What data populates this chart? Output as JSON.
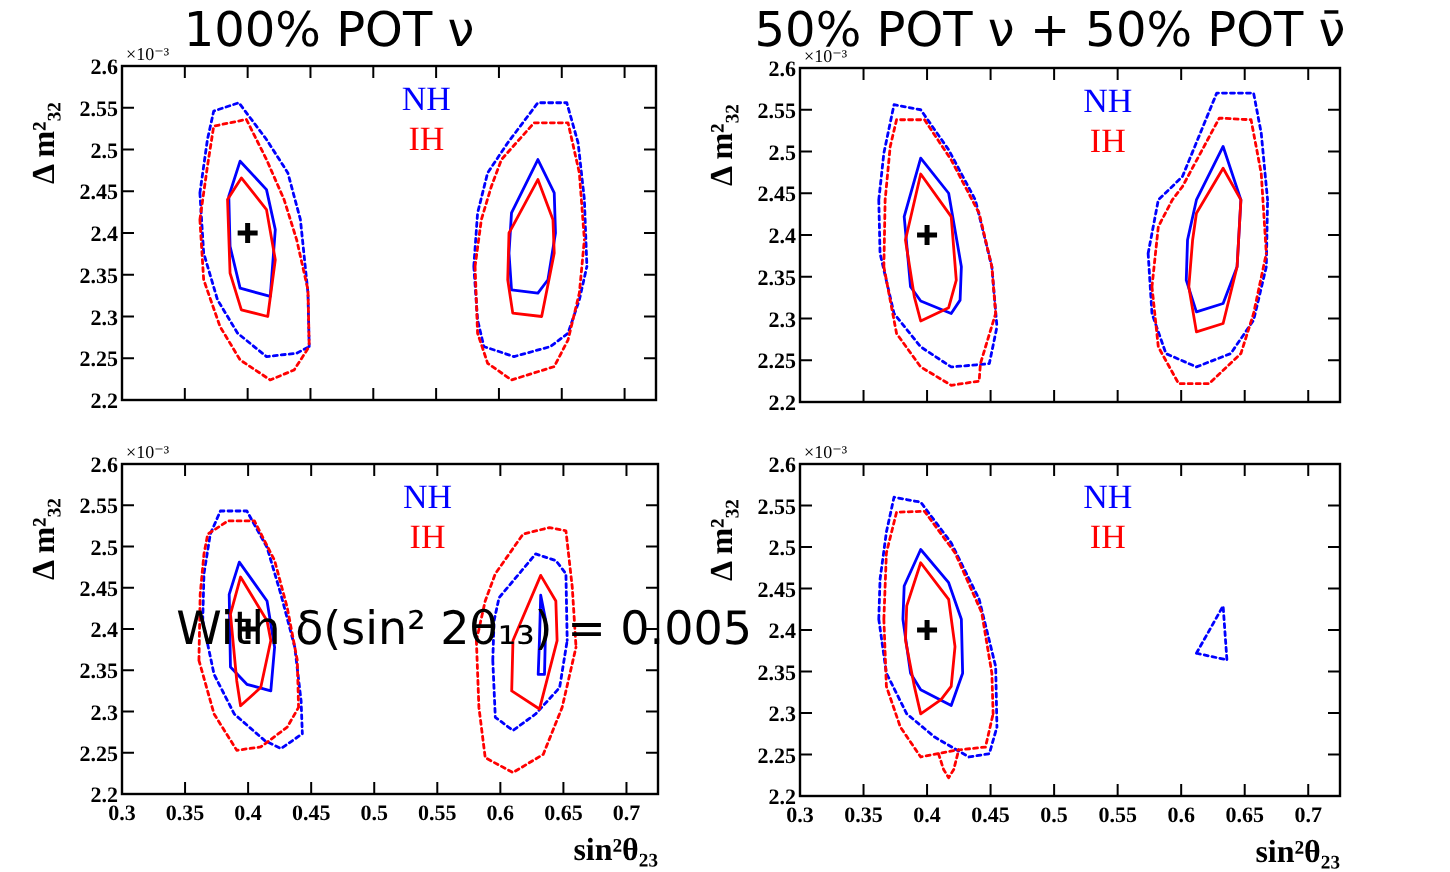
{
  "chart_data": [
    {
      "type": "line",
      "title": "100% POT ν",
      "ylabel": "Δ m²₃₂",
      "annotations": [
        "×10⁻³"
      ],
      "xlim": [
        0.3,
        0.725
      ],
      "ylim": [
        2.2,
        2.6
      ],
      "xticks": [
        0.3,
        0.35,
        0.4,
        0.45,
        0.5,
        0.55,
        0.6,
        0.65,
        0.7
      ],
      "yticks": [
        2.2,
        2.25,
        2.3,
        2.35,
        2.4,
        2.45,
        2.5,
        2.55,
        2.6
      ],
      "tick_labels": "y",
      "legend": "top",
      "series": [
        {
          "color": "#0000ff",
          "line_style": "dotted",
          "x": [
            0.362,
            0.368,
            0.373,
            0.393,
            0.415,
            0.432,
            0.442,
            0.448,
            0.449,
            null,
            0.362,
            0.365,
            0.376,
            0.392,
            0.415,
            0.439,
            0.449,
            null,
            0.58,
            0.583,
            0.591,
            0.607,
            0.631,
            0.654,
            0.663,
            0.668,
            0.67,
            null,
            0.58,
            0.583,
            0.588,
            0.612,
            0.641,
            0.655,
            0.664,
            0.67
          ],
          "values": [
            2.448,
            2.512,
            2.546,
            2.556,
            2.512,
            2.472,
            2.416,
            2.328,
            2.264,
            null,
            2.448,
            2.376,
            2.32,
            2.28,
            2.252,
            2.256,
            2.264,
            null,
            2.36,
            2.424,
            2.472,
            2.508,
            2.556,
            2.556,
            2.508,
            2.44,
            2.36,
            null,
            2.36,
            2.296,
            2.264,
            2.252,
            2.264,
            2.28,
            2.32,
            2.36
          ]
        },
        {
          "color": "#ff0000",
          "line_style": "dotted",
          "x": [
            0.362,
            0.368,
            0.373,
            0.399,
            0.415,
            0.429,
            0.439,
            0.448,
            0.449,
            null,
            0.362,
            0.365,
            0.378,
            0.394,
            0.418,
            0.437,
            0.449,
            null,
            0.581,
            0.586,
            0.594,
            0.602,
            0.628,
            0.655,
            0.664,
            0.668,
            null,
            0.581,
            0.583,
            0.591,
            0.61,
            0.644,
            0.655,
            0.664,
            0.668
          ],
          "values": [
            2.416,
            2.48,
            2.528,
            2.536,
            2.488,
            2.44,
            2.392,
            2.332,
            2.264,
            null,
            2.416,
            2.344,
            2.288,
            2.248,
            2.224,
            2.236,
            2.264,
            null,
            2.36,
            2.416,
            2.456,
            2.488,
            2.532,
            2.532,
            2.472,
            2.392,
            null,
            2.36,
            2.28,
            2.244,
            2.224,
            2.24,
            2.272,
            2.328,
            2.392
          ]
        },
        {
          "name": "NH",
          "color": "#0000ff",
          "line_style": "solid",
          "x": [
            0.385,
            0.394,
            0.415,
            0.422,
            null,
            0.385,
            0.386,
            0.394,
            0.418,
            0.422,
            null,
            0.608,
            0.61,
            0.631,
            0.644,
            0.645,
            null,
            0.608,
            0.61,
            0.631,
            0.639,
            0.645
          ],
          "values": [
            2.444,
            2.486,
            2.452,
            2.404,
            null,
            2.444,
            2.384,
            2.334,
            2.324,
            2.404,
            null,
            2.376,
            2.424,
            2.488,
            2.448,
            2.4,
            null,
            2.376,
            2.332,
            2.328,
            2.344,
            2.4
          ]
        },
        {
          "name": "IH",
          "color": "#ff0000",
          "line_style": "solid",
          "x": [
            0.384,
            0.395,
            0.415,
            0.422,
            null,
            0.384,
            0.386,
            0.395,
            0.416,
            0.422,
            null,
            0.607,
            0.608,
            0.631,
            0.643,
            0.644,
            null,
            0.607,
            0.611,
            0.634,
            0.644
          ],
          "values": [
            2.44,
            2.466,
            2.428,
            2.368,
            null,
            2.44,
            2.352,
            2.308,
            2.3,
            2.368,
            null,
            2.344,
            2.4,
            2.464,
            2.416,
            2.376,
            null,
            2.344,
            2.304,
            2.3,
            2.376
          ]
        },
        {
          "type": "scatter",
          "color": "#000000",
          "marker": "cross",
          "x": [
            0.4
          ],
          "values": [
            2.4
          ]
        }
      ]
    },
    {
      "type": "line",
      "title": "50% POT ν + 50% POT ν̄",
      "ylabel": "Δ m²₃₂",
      "annotations": [
        "×10⁻³"
      ],
      "xlim": [
        0.3,
        0.725
      ],
      "ylim": [
        2.2,
        2.6
      ],
      "xticks": [
        0.3,
        0.35,
        0.4,
        0.45,
        0.5,
        0.55,
        0.6,
        0.65,
        0.7
      ],
      "yticks": [
        2.2,
        2.25,
        2.3,
        2.35,
        2.4,
        2.45,
        2.5,
        2.55,
        2.6
      ],
      "tick_labels": "y",
      "legend": "top",
      "series": [
        {
          "color": "#0000ff",
          "line_style": "dotted",
          "x": [
            0.362,
            0.366,
            0.374,
            0.395,
            0.417,
            0.438,
            0.451,
            0.455,
            null,
            0.362,
            0.363,
            0.374,
            0.395,
            0.419,
            0.435,
            0.449,
            0.455,
            null,
            0.574,
            0.582,
            0.601,
            0.628,
            0.657,
            0.663,
            0.668,
            null,
            0.574,
            0.577,
            0.588,
            0.612,
            0.639,
            0.657,
            0.667,
            0.668
          ],
          "values": [
            2.442,
            2.498,
            2.556,
            2.55,
            2.502,
            2.442,
            2.362,
            2.29,
            null,
            2.442,
            2.378,
            2.306,
            2.266,
            2.242,
            2.244,
            2.246,
            2.29,
            null,
            2.378,
            2.442,
            2.47,
            2.57,
            2.57,
            2.522,
            2.442,
            null,
            2.378,
            2.306,
            2.258,
            2.242,
            2.258,
            2.298,
            2.362,
            2.442
          ]
        },
        {
          "color": "#ff0000",
          "line_style": "dotted",
          "x": [
            0.366,
            0.367,
            0.371,
            0.376,
            0.398,
            0.419,
            0.441,
            0.451,
            0.454,
            null,
            0.366,
            0.376,
            0.395,
            0.419,
            0.441,
            0.442,
            0.454,
            null,
            0.577,
            0.582,
            0.593,
            0.601,
            0.63,
            0.655,
            0.663,
            0.667,
            null,
            0.577,
            0.582,
            0.598,
            0.622,
            0.647,
            0.657,
            0.667
          ],
          "values": [
            2.362,
            2.442,
            2.506,
            2.538,
            2.538,
            2.49,
            2.426,
            2.362,
            2.306,
            null,
            2.362,
            2.282,
            2.242,
            2.22,
            2.225,
            2.246,
            2.306,
            null,
            2.338,
            2.41,
            2.442,
            2.458,
            2.54,
            2.538,
            2.474,
            2.378,
            null,
            2.338,
            2.266,
            2.222,
            2.222,
            2.258,
            2.306,
            2.378
          ]
        },
        {
          "name": "NH",
          "color": "#0000ff",
          "line_style": "solid",
          "x": [
            0.382,
            0.395,
            0.417,
            0.427,
            null,
            0.382,
            0.387,
            0.395,
            0.419,
            0.426,
            0.427,
            null,
            0.604,
            0.605,
            0.612,
            0.633,
            0.647,
            null,
            0.604,
            0.612,
            0.633,
            0.644,
            0.647
          ],
          "values": [
            2.422,
            2.492,
            2.45,
            2.362,
            null,
            2.422,
            2.338,
            2.321,
            2.306,
            2.322,
            2.362,
            null,
            2.346,
            2.394,
            2.442,
            2.506,
            2.442,
            null,
            2.346,
            2.308,
            2.318,
            2.362,
            2.442
          ]
        },
        {
          "name": "IH",
          "color": "#ff0000",
          "line_style": "solid",
          "x": [
            0.383,
            0.395,
            0.419,
            0.423,
            null,
            0.383,
            0.39,
            0.395,
            0.417,
            0.423,
            null,
            0.606,
            0.609,
            0.612,
            0.633,
            0.647,
            null,
            0.606,
            0.612,
            0.633,
            0.644,
            0.647
          ],
          "values": [
            2.394,
            2.473,
            2.422,
            2.346,
            null,
            2.394,
            2.326,
            2.297,
            2.313,
            2.346,
            null,
            2.338,
            2.394,
            2.426,
            2.48,
            2.442,
            null,
            2.338,
            2.284,
            2.294,
            2.362,
            2.442
          ]
        },
        {
          "type": "scatter",
          "color": "#000000",
          "marker": "cross",
          "x": [
            0.4
          ],
          "values": [
            2.4
          ]
        }
      ]
    },
    {
      "type": "line",
      "xlabel": "sin²θ₂₃",
      "ylabel": "Δ m²₃₂",
      "annotations": [
        "×10⁻³",
        "With δ(sin² 2θ₁₃) = 0.005"
      ],
      "xlim": [
        0.3,
        0.725
      ],
      "ylim": [
        2.2,
        2.6
      ],
      "xticks": [
        0.3,
        0.35,
        0.4,
        0.45,
        0.5,
        0.55,
        0.6,
        0.65,
        0.7
      ],
      "yticks": [
        2.2,
        2.25,
        2.3,
        2.35,
        2.4,
        2.45,
        2.5,
        2.55,
        2.6
      ],
      "legend": "top",
      "series": [
        {
          "color": "#0000ff",
          "line_style": "dotted",
          "x": [
            0.364,
            0.365,
            0.37,
            0.378,
            0.399,
            0.415,
            0.426,
            0.437,
            0.442,
            0.443,
            null,
            0.364,
            0.373,
            0.389,
            0.413,
            0.426,
            0.443,
            null,
            0.594,
            0.595,
            0.599,
            0.628,
            0.644,
            0.652,
            0.653,
            null,
            0.594,
            0.596,
            0.61,
            0.628,
            0.647,
            0.653
          ],
          "values": [
            2.41,
            2.467,
            2.515,
            2.543,
            2.543,
            2.499,
            2.442,
            2.378,
            2.313,
            2.273,
            null,
            2.41,
            2.345,
            2.297,
            2.265,
            2.255,
            2.273,
            null,
            2.362,
            2.41,
            2.438,
            2.491,
            2.483,
            2.467,
            2.386,
            null,
            2.362,
            2.293,
            2.277,
            2.297,
            2.329,
            2.386
          ]
        },
        {
          "color": "#ff0000",
          "line_style": "dotted",
          "x": [
            0.361,
            0.362,
            0.365,
            0.368,
            0.384,
            0.405,
            0.421,
            0.431,
            0.439,
            0.44,
            null,
            0.361,
            0.373,
            0.391,
            0.41,
            0.431,
            0.44,
            null,
            0.581,
            0.588,
            0.596,
            0.618,
            0.639,
            0.652,
            0.657,
            0.66,
            null,
            0.581,
            0.583,
            0.588,
            0.61,
            0.634,
            0.649,
            0.66
          ],
          "values": [
            2.362,
            2.442,
            2.491,
            2.515,
            2.531,
            2.531,
            2.483,
            2.426,
            2.362,
            2.305,
            null,
            2.362,
            2.297,
            2.253,
            2.257,
            2.281,
            2.305,
            null,
            2.386,
            2.434,
            2.467,
            2.515,
            2.523,
            2.519,
            2.451,
            2.378,
            null,
            2.386,
            2.305,
            2.244,
            2.226,
            2.248,
            2.305,
            2.378
          ]
        },
        {
          "name": "NH",
          "color": "#0000ff",
          "line_style": "solid",
          "x": [
            0.385,
            0.393,
            0.415,
            0.421,
            null,
            0.385,
            0.386,
            0.399,
            0.418,
            0.421,
            null,
            0.63,
            0.631,
            0.632,
            0.636,
            null,
            0.63,
            0.635,
            0.636
          ],
          "values": [
            2.442,
            2.481,
            2.434,
            2.378,
            null,
            2.442,
            2.354,
            2.333,
            2.325,
            2.378,
            null,
            2.345,
            2.386,
            2.441,
            2.41,
            null,
            2.345,
            2.345,
            2.41
          ]
        },
        {
          "name": "IH",
          "color": "#ff0000",
          "line_style": "solid",
          "x": [
            0.386,
            0.394,
            0.415,
            0.418,
            null,
            0.386,
            0.391,
            0.394,
            0.41,
            0.418,
            null,
            0.609,
            0.61,
            0.632,
            0.644,
            0.645,
            null,
            0.609,
            0.631,
            0.645
          ],
          "values": [
            2.418,
            2.463,
            2.41,
            2.386,
            null,
            2.418,
            2.337,
            2.307,
            2.329,
            2.386,
            null,
            2.325,
            2.386,
            2.465,
            2.434,
            2.386,
            null,
            2.325,
            2.303,
            2.386
          ]
        },
        {
          "type": "scatter",
          "color": "#000000",
          "marker": "cross",
          "x": [
            0.4
          ],
          "values": [
            2.4
          ]
        }
      ]
    },
    {
      "type": "line",
      "xlabel": "sin²θ₂₃",
      "ylabel": "Δ m²₃₂",
      "annotations": [
        "×10⁻³"
      ],
      "xlim": [
        0.3,
        0.725
      ],
      "ylim": [
        2.2,
        2.6
      ],
      "xticks": [
        0.3,
        0.35,
        0.4,
        0.45,
        0.5,
        0.55,
        0.6,
        0.65,
        0.7
      ],
      "yticks": [
        2.2,
        2.25,
        2.3,
        2.35,
        2.4,
        2.45,
        2.5,
        2.55,
        2.6
      ],
      "legend": "top",
      "series": [
        {
          "color": "#0000ff",
          "line_style": "dotted",
          "x": [
            0.362,
            0.363,
            0.368,
            0.374,
            0.395,
            0.419,
            0.441,
            0.454,
            0.455,
            null,
            0.362,
            0.368,
            0.384,
            0.406,
            0.433,
            0.449,
            0.455,
            null,
            0.612,
            0.633,
            0.636,
            null,
            0.612,
            0.636
          ],
          "values": [
            2.413,
            2.461,
            2.518,
            2.56,
            2.554,
            2.505,
            2.437,
            2.356,
            2.283,
            null,
            2.413,
            2.348,
            2.299,
            2.271,
            2.247,
            2.251,
            2.283,
            null,
            2.372,
            2.429,
            2.364,
            null,
            2.372,
            2.364
          ]
        },
        {
          "color": "#ff0000",
          "line_style": "dotted",
          "x": [
            0.366,
            0.368,
            0.376,
            0.398,
            0.422,
            0.443,
            0.451,
            0.452,
            null,
            0.366,
            0.368,
            0.379,
            0.395,
            0.422,
            0.446,
            0.452,
            null,
            0.409,
            0.413,
            0.417,
            0.421,
            0.425
          ],
          "values": [
            2.413,
            2.493,
            2.542,
            2.543,
            2.493,
            2.421,
            2.348,
            2.299,
            null,
            2.413,
            2.332,
            2.283,
            2.247,
            2.255,
            2.259,
            2.299,
            null,
            2.251,
            2.232,
            2.222,
            2.232,
            2.256
          ]
        },
        {
          "name": "NH",
          "color": "#0000ff",
          "line_style": "solid",
          "x": [
            0.381,
            0.382,
            0.395,
            0.417,
            0.427,
            0.428,
            null,
            0.381,
            0.387,
            0.395,
            0.419,
            0.428
          ],
          "values": [
            2.413,
            2.453,
            2.497,
            2.457,
            2.413,
            2.348,
            null,
            2.413,
            2.348,
            2.328,
            2.309,
            2.348
          ]
        },
        {
          "name": "IH",
          "color": "#ff0000",
          "line_style": "solid",
          "x": [
            0.383,
            0.384,
            0.395,
            0.417,
            0.422,
            null,
            0.383,
            0.39,
            0.395,
            0.411,
            0.419,
            0.422
          ],
          "values": [
            2.388,
            2.429,
            2.481,
            2.437,
            2.38,
            null,
            2.388,
            2.332,
            2.299,
            2.316,
            2.332,
            2.38
          ]
        },
        {
          "type": "scatter",
          "color": "#000000",
          "marker": "cross",
          "x": [
            0.4
          ],
          "values": [
            2.4
          ]
        }
      ]
    }
  ]
}
